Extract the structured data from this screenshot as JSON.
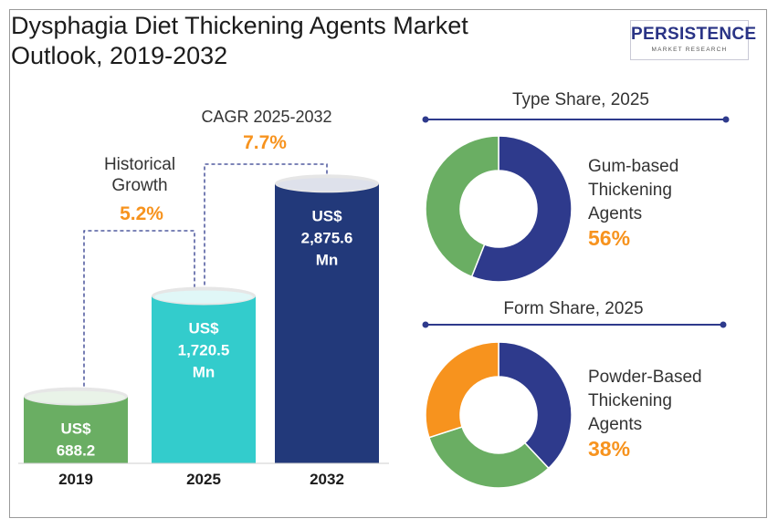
{
  "header": {
    "title_line1": "Dysphagia Diet Thickening Agents Market",
    "title_line2": "Outlook, 2019-2032",
    "logo_text": "PERSISTENCE",
    "logo_subtext": "MARKET RESEARCH"
  },
  "annotations": {
    "historical_label_line1": "Historical",
    "historical_label_line2": "Growth",
    "historical_value": "5.2%",
    "cagr_label": "CAGR 2025-2032",
    "cagr_value": "7.7%"
  },
  "colors": {
    "bar_2019": "#6aae63",
    "bar_2025": "#33cccc",
    "bar_2032": "#22397a",
    "accent_orange": "#f7931e",
    "donut_blue": "#2e3a8c",
    "donut_green": "#6aae63",
    "donut_orange": "#f7931e",
    "connector": "#2e3a8c"
  },
  "chart_data": [
    {
      "type": "bar",
      "categories": [
        "2019",
        "2025",
        "2032"
      ],
      "values": [
        688.2,
        1720.5,
        2875.6
      ],
      "value_labels": [
        [
          "US$",
          "688.2",
          "Mn"
        ],
        [
          "US$",
          "1,720.5",
          "Mn"
        ],
        [
          "US$",
          "2,875.6",
          "Mn"
        ]
      ],
      "xlabel": "",
      "ylabel": ""
    },
    {
      "type": "pie",
      "title": "Type Share, 2025",
      "highlight_label_lines": [
        "Gum-based",
        "Thickening",
        "Agents"
      ],
      "highlight_value": "56%",
      "slices": [
        {
          "value": 56,
          "color": "#2e3a8c"
        },
        {
          "value": 44,
          "color": "#6aae63"
        }
      ]
    },
    {
      "type": "pie",
      "title": "Form Share, 2025",
      "highlight_label_lines": [
        "Powder-Based",
        "Thickening",
        "Agents"
      ],
      "highlight_value": "38%",
      "slices": [
        {
          "value": 38,
          "color": "#2e3a8c"
        },
        {
          "value": 32,
          "color": "#6aae63"
        },
        {
          "value": 30,
          "color": "#f7931e"
        }
      ]
    }
  ]
}
